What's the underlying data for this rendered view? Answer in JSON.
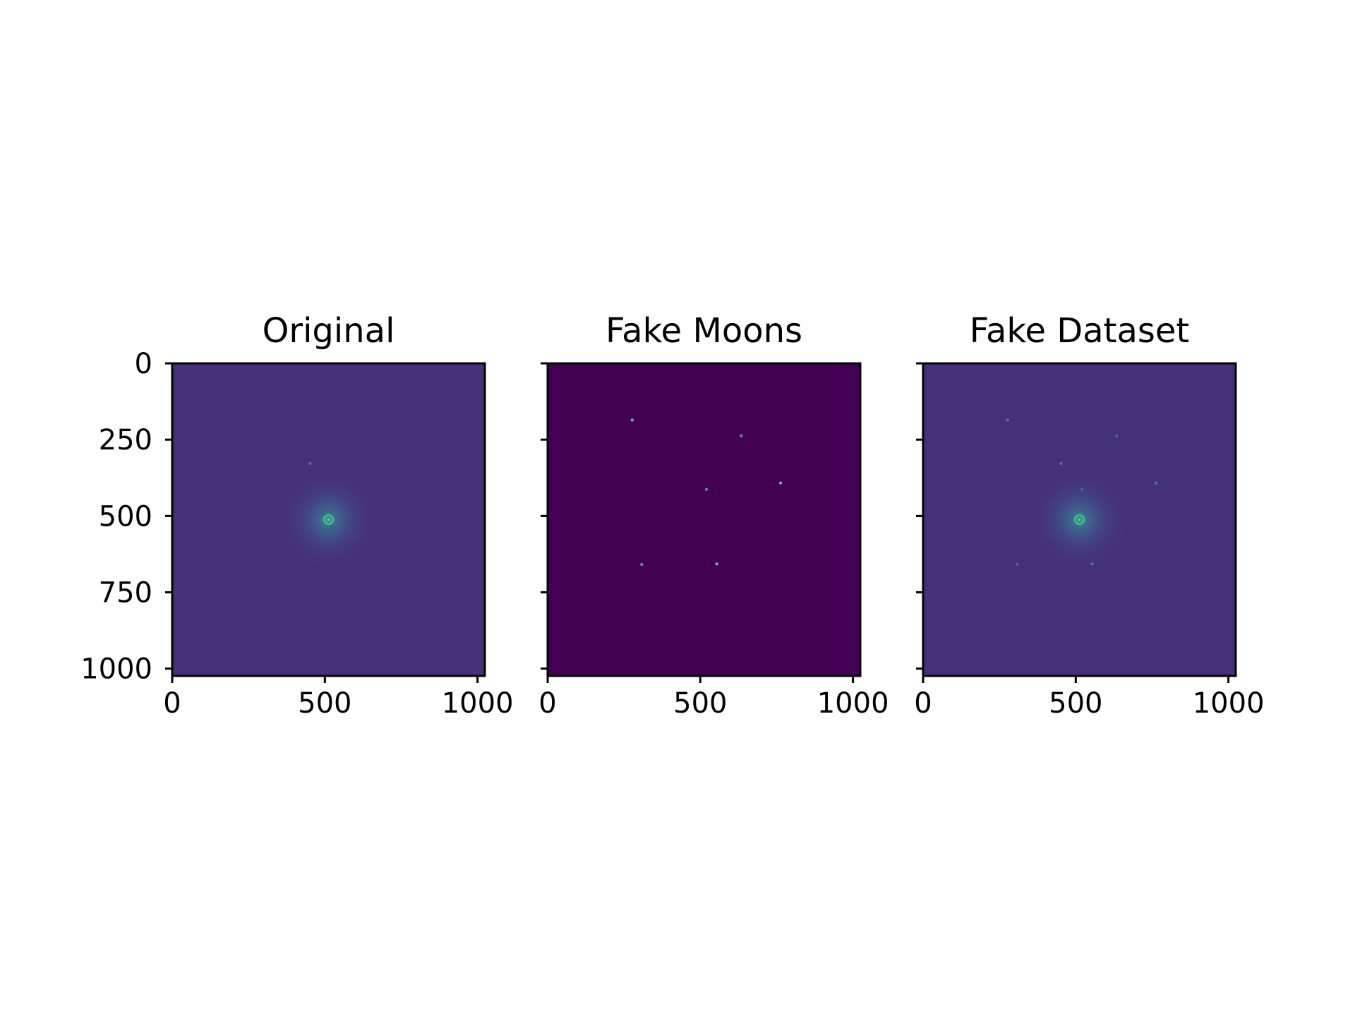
{
  "chart_data": [
    {
      "type": "heatmap",
      "title": "Original",
      "xlim": [
        0,
        1024
      ],
      "ylim": [
        1024,
        0
      ],
      "xticks": [
        0,
        500,
        1000
      ],
      "yticks": [
        0,
        250,
        500,
        750,
        1000
      ],
      "show_y_tick_labels": true,
      "colormap": "viridis",
      "background_color": "#46307a",
      "bright_sources": [
        {
          "x": 512,
          "y": 512,
          "kind": "ring",
          "color": "#3bb58c"
        },
        {
          "x": 452,
          "y": 328,
          "kind": "dot",
          "color": "#3a7f9b"
        }
      ]
    },
    {
      "type": "heatmap",
      "title": "Fake Moons",
      "xlim": [
        0,
        1024
      ],
      "ylim": [
        1024,
        0
      ],
      "xticks": [
        0,
        500,
        1000
      ],
      "yticks": [
        0,
        250,
        500,
        750,
        1000
      ],
      "show_y_tick_labels": false,
      "colormap": "viridis",
      "background_color": "#440154",
      "bright_sources": [
        {
          "x": 277,
          "y": 186,
          "kind": "dot",
          "color": "#5fb3c8"
        },
        {
          "x": 634,
          "y": 237,
          "kind": "dot",
          "color": "#4c8fb0"
        },
        {
          "x": 763,
          "y": 392,
          "kind": "dot",
          "color": "#5fb3c8"
        },
        {
          "x": 520,
          "y": 413,
          "kind": "dot",
          "color": "#4c8fb0"
        },
        {
          "x": 308,
          "y": 659,
          "kind": "dot",
          "color": "#4c8fb0"
        },
        {
          "x": 554,
          "y": 657,
          "kind": "dot",
          "color": "#5fb3c8"
        }
      ]
    },
    {
      "type": "heatmap",
      "title": "Fake Dataset",
      "xlim": [
        0,
        1024
      ],
      "ylim": [
        1024,
        0
      ],
      "xticks": [
        0,
        500,
        1000
      ],
      "yticks": [
        0,
        250,
        500,
        750,
        1000
      ],
      "show_y_tick_labels": false,
      "colormap": "viridis",
      "background_color": "#46307a",
      "bright_sources": [
        {
          "x": 512,
          "y": 512,
          "kind": "ring",
          "color": "#3bb58c"
        },
        {
          "x": 452,
          "y": 328,
          "kind": "dot",
          "color": "#3a7f9b"
        },
        {
          "x": 277,
          "y": 186,
          "kind": "dot",
          "color": "#3a7f9b"
        },
        {
          "x": 634,
          "y": 237,
          "kind": "dot",
          "color": "#3a6a98"
        },
        {
          "x": 763,
          "y": 392,
          "kind": "dot",
          "color": "#3a7f9b"
        },
        {
          "x": 520,
          "y": 413,
          "kind": "dot",
          "color": "#3a6a98"
        },
        {
          "x": 308,
          "y": 659,
          "kind": "dot",
          "color": "#3a6a98"
        },
        {
          "x": 554,
          "y": 657,
          "kind": "dot",
          "color": "#3a7f9b"
        }
      ]
    }
  ]
}
